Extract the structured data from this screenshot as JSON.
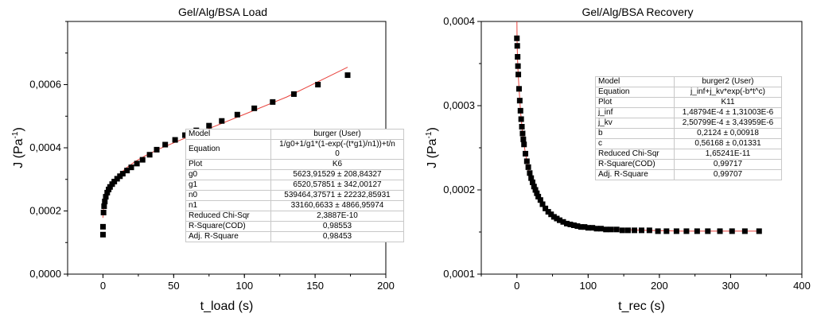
{
  "chart_data": [
    {
      "type": "scatter",
      "title": "Gel/Alg/BSA Load",
      "xlabel": "t_load (s)",
      "ylabel_main": "J (Pa",
      "ylabel_sup": "-1",
      "ylabel_close": ")",
      "xlim": [
        -25,
        200
      ],
      "ylim": [
        0,
        0.0008
      ],
      "xticks": [
        "0",
        "50",
        "100",
        "150",
        "200"
      ],
      "yticks": [
        "0,0000",
        "0,0002",
        "0,0004",
        "0,0006"
      ],
      "grid": false,
      "series": [
        {
          "kind": "data",
          "marker": "square",
          "color": "#000000",
          "x": [
            0,
            0,
            0.4,
            0.8,
            1.3,
            2,
            3,
            4,
            5,
            6.5,
            8,
            10,
            12,
            14,
            17,
            20,
            24,
            28,
            33,
            38,
            44,
            51,
            58,
            66,
            75,
            84,
            95,
            107,
            120,
            135,
            152,
            173
          ],
          "y": [
            0.000125,
            0.00015,
            0.000195,
            0.000215,
            0.00023,
            0.000245,
            0.000258,
            0.000268,
            0.000276,
            0.000285,
            0.000293,
            0.000302,
            0.00031,
            0.000318,
            0.000328,
            0.000338,
            0.00035,
            0.000362,
            0.000378,
            0.000394,
            0.00041,
            0.000425,
            0.00044,
            0.000455,
            0.00047,
            0.000485,
            0.000505,
            0.000525,
            0.000545,
            0.00057,
            0.0006,
            0.00063
          ]
        },
        {
          "kind": "fit",
          "color": "#e8423c",
          "x": [
            0,
            0.5,
            1,
            2,
            3,
            5,
            8,
            12,
            17,
            23,
            30,
            40,
            55,
            75,
            100,
            130,
            173
          ],
          "y": [
            0.000178,
            0.000212,
            0.000226,
            0.000245,
            0.000258,
            0.000277,
            0.000298,
            0.000318,
            0.000338,
            0.000357,
            0.000375,
            0.000397,
            0.000425,
            0.000461,
            0.000506,
            0.000561,
            0.000655
          ]
        }
      ],
      "fit_table": [
        [
          "Model",
          "burger (User)"
        ],
        [
          "Equation",
          "1/g0+1/g1*(1-exp(-(t*g1)/n1))+t/n\n0"
        ],
        [
          "Plot",
          "K6"
        ],
        [
          "g0",
          "5623,91529 ± 208,84327"
        ],
        [
          "g1",
          "6520,57851 ± 342,00127"
        ],
        [
          "n0",
          "539464,37571 ± 22232,85931"
        ],
        [
          "n1",
          "33160,6633 ± 4866,95974"
        ],
        [
          "Reduced Chi-Sqr",
          "2,3887E-10"
        ],
        [
          "R-Square(COD)",
          "0,98553"
        ],
        [
          "Adj. R-Square",
          "0,98453"
        ]
      ]
    },
    {
      "type": "scatter",
      "title": "Gel/Alg/BSA Recovery",
      "xlabel": "t_rec (s)",
      "ylabel_main": "J (Pa",
      "ylabel_sup": "-1",
      "ylabel_close": ")",
      "xlim": [
        -50,
        400
      ],
      "ylim": [
        0.0001,
        0.0004
      ],
      "xticks": [
        "0",
        "100",
        "200",
        "300",
        "400"
      ],
      "yticks": [
        "0,0001",
        "0,0002",
        "0,0003",
        "0,0004"
      ],
      "grid": false,
      "series": [
        {
          "kind": "data",
          "marker": "square",
          "color": "#000000",
          "x": [
            0,
            0.5,
            1,
            1.5,
            2,
            3,
            4,
            5,
            6,
            7,
            8,
            9,
            10,
            12,
            14,
            16,
            18,
            20,
            22,
            24,
            26,
            28,
            30,
            33,
            36,
            40,
            44,
            48,
            52,
            56,
            60,
            65,
            70,
            75,
            80,
            85,
            90,
            95,
            100,
            106,
            112,
            118,
            125,
            132,
            140,
            148,
            156,
            165,
            175,
            186,
            198,
            210,
            224,
            238,
            253,
            268,
            285,
            302,
            320,
            340
          ],
          "y": [
            0.00038,
            0.000371,
            0.000358,
            0.000347,
            0.000337,
            0.00032,
            0.000306,
            0.000294,
            0.000284,
            0.000275,
            0.000267,
            0.00026,
            0.000254,
            0.000243,
            0.000234,
            0.000227,
            0.00022,
            0.000214,
            0.000209,
            0.000204,
            0.0002,
            0.000196,
            0.000192,
            0.000188,
            0.000183,
            0.000178,
            0.000174,
            0.000171,
            0.000168,
            0.000166,
            0.000164,
            0.000162,
            0.00016,
            0.000159,
            0.000158,
            0.000157,
            0.000156,
            0.000156,
            0.000155,
            0.000155,
            0.000154,
            0.000154,
            0.000153,
            0.000153,
            0.000153,
            0.000152,
            0.000152,
            0.000152,
            0.000152,
            0.000152,
            0.000151,
            0.000151,
            0.000151,
            0.000151,
            0.000151,
            0.000151,
            0.000151,
            0.000151,
            0.000151,
            0.000151
          ]
        },
        {
          "kind": "fit",
          "color": "#e8423c",
          "x": [
            0,
            0.3,
            0.8,
            1.5,
            3,
            5,
            8,
            12,
            17,
            23,
            30,
            40,
            55,
            70,
            90,
            115,
            140,
            180,
            230,
            290,
            340
          ],
          "y": [
            0.0004,
            0.000378,
            0.000358,
            0.000343,
            0.00032,
            0.000294,
            0.000267,
            0.000243,
            0.000222,
            0.000205,
            0.000192,
            0.000179,
            0.000167,
            0.00016,
            0.000156,
            0.000154,
            0.000153,
            0.000152,
            0.000151,
            0.000151,
            0.000151
          ]
        }
      ],
      "fit_table": [
        [
          "Model",
          "burger2 (User)"
        ],
        [
          "Equation",
          "j_inf+j_kv*exp(-b*t^c)"
        ],
        [
          "Plot",
          "K11"
        ],
        [
          "j_inf",
          "1,48794E-4 ± 1,31003E-6"
        ],
        [
          "j_kv",
          "2,50799E-4 ± 3,43959E-6"
        ],
        [
          "b",
          "0,2124 ± 0,00918"
        ],
        [
          "c",
          "0,56168 ± 0,01331"
        ],
        [
          "Reduced Chi-Sqr",
          "1,65241E-11"
        ],
        [
          "R-Square(COD)",
          "0,99717"
        ],
        [
          "Adj. R-Square",
          "0,99707"
        ]
      ]
    }
  ]
}
